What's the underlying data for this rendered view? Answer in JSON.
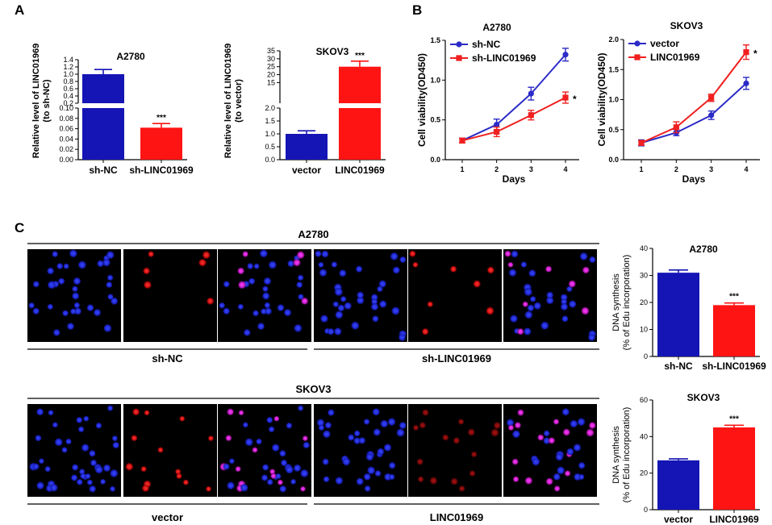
{
  "panel_labels": {
    "a": "A",
    "b": "B",
    "c": "C"
  },
  "colors": {
    "blue": "#1515b5",
    "red": "#ff1414",
    "blue_line": "#2b2bc8",
    "red_line": "#f02020"
  },
  "chart_data": [
    {
      "id": "A1",
      "type": "bar",
      "title": "A2780",
      "ylabel": "Relative level of LINC01969",
      "ylabel2": "(to sh-NC)",
      "categories": [
        "sh-NC",
        "sh-LINC01969"
      ],
      "values": [
        1.0,
        0.062
      ],
      "errors": [
        0.13,
        0.008
      ],
      "significance": [
        "",
        "***"
      ],
      "broken_axis": true,
      "upper_range": [
        0.2,
        1.4
      ],
      "upper_ticks": [
        "0.2",
        "0.4",
        "0.6",
        "0.8",
        "1.0",
        "1.2",
        "1.4"
      ],
      "lower_range": [
        0,
        0.1
      ],
      "lower_ticks": [
        "0.00",
        "0.02",
        "0.04",
        "0.06",
        "0.08",
        "0.10"
      ]
    },
    {
      "id": "A2",
      "type": "bar",
      "title": "SKOV3",
      "ylabel": "Relative level of LINC01969",
      "ylabel2": "(to vector)",
      "categories": [
        "vector",
        "LINC01969"
      ],
      "values": [
        1.0,
        25.0
      ],
      "errors": [
        0.12,
        3.5
      ],
      "significance": [
        "",
        "***"
      ],
      "broken_axis": true,
      "upper_range": [
        2,
        35
      ],
      "upper_ticks": [
        "15",
        "20",
        "25",
        "30",
        "35"
      ],
      "lower_range": [
        0,
        2
      ],
      "lower_ticks": [
        "0.0",
        "0.5",
        "1.0",
        "1.5",
        "2.0"
      ]
    },
    {
      "id": "B1",
      "type": "line",
      "title": "A2780",
      "xlabel": "Days",
      "ylabel": "Cell viability(OD450)",
      "x": [
        1,
        2,
        3,
        4
      ],
      "ylim": [
        0,
        1.5
      ],
      "yticks": [
        "0.0",
        "0.5",
        "1.0",
        "1.5"
      ],
      "series": [
        {
          "name": "sh-NC",
          "values": [
            0.24,
            0.44,
            0.83,
            1.32
          ],
          "errors": [
            0.03,
            0.07,
            0.08,
            0.08
          ]
        },
        {
          "name": "sh-LINC01969",
          "values": [
            0.24,
            0.35,
            0.56,
            0.78
          ],
          "errors": [
            0.03,
            0.06,
            0.06,
            0.07
          ]
        }
      ],
      "annotation": "*"
    },
    {
      "id": "B2",
      "type": "line",
      "title": "SKOV3",
      "xlabel": "Days",
      "ylabel": "Cell viability(OD450)",
      "x": [
        1,
        2,
        3,
        4
      ],
      "ylim": [
        0,
        2.0
      ],
      "yticks": [
        "0.0",
        "0.5",
        "1.0",
        "1.5",
        "2.0"
      ],
      "series": [
        {
          "name": "vector",
          "values": [
            0.28,
            0.45,
            0.74,
            1.27
          ],
          "errors": [
            0.05,
            0.05,
            0.07,
            0.1
          ]
        },
        {
          "name": "LINC01969",
          "values": [
            0.28,
            0.54,
            1.03,
            1.79
          ],
          "errors": [
            0.04,
            0.09,
            0.06,
            0.12
          ]
        }
      ],
      "annotation": "*"
    },
    {
      "id": "C1",
      "type": "bar",
      "title": "A2780",
      "ylabel": "DNA synthesis",
      "ylabel2": "(% of Edu incorporation)",
      "categories": [
        "sh-NC",
        "sh-LINC01969"
      ],
      "values": [
        31,
        19
      ],
      "errors": [
        1,
        0.8
      ],
      "significance": [
        "",
        "***"
      ],
      "ylim": [
        0,
        40
      ],
      "yticks": [
        "0",
        "10",
        "20",
        "30",
        "40"
      ]
    },
    {
      "id": "C2",
      "type": "bar",
      "title": "SKOV3",
      "ylabel": "DNA synthesis",
      "ylabel2": "(% of Edu incorporation)",
      "categories": [
        "vector",
        "LINC01969"
      ],
      "values": [
        27,
        45
      ],
      "errors": [
        0.8,
        1.2
      ],
      "significance": [
        "",
        "***"
      ],
      "ylim": [
        0,
        60
      ],
      "yticks": [
        "0",
        "20",
        "40",
        "60"
      ]
    }
  ],
  "micrographs": {
    "row1": {
      "cell_line": "A2780",
      "group_labels": [
        "sh-NC",
        "sh-LINC01969"
      ]
    },
    "row2": {
      "cell_line": "SKOV3",
      "group_labels": [
        "vector",
        "LINC01969"
      ]
    }
  }
}
